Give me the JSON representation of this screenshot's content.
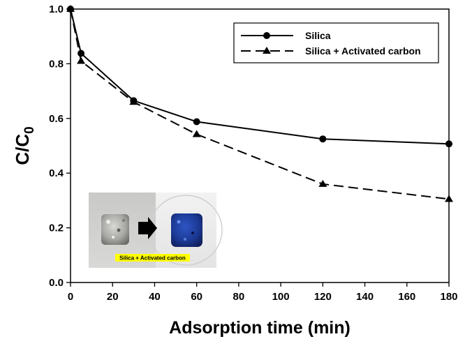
{
  "chart_data": {
    "type": "line",
    "xlabel": "Adsorption time (min)",
    "ylabel_main": "C/C",
    "ylabel_sub": "0",
    "xlim": [
      0,
      180
    ],
    "ylim": [
      0.0,
      1.0
    ],
    "x_ticks": [
      0,
      20,
      40,
      60,
      80,
      100,
      120,
      140,
      160,
      180
    ],
    "y_ticks": [
      "0.0",
      "0.2",
      "0.4",
      "0.6",
      "0.8",
      "1.0"
    ],
    "grid": false,
    "legend_position": "top-right",
    "series": [
      {
        "name": "Silica",
        "marker": "circle",
        "line_style": "solid",
        "color": "#000000",
        "x": [
          0,
          5,
          30,
          60,
          120,
          180
        ],
        "y": [
          1.0,
          0.838,
          0.665,
          0.588,
          0.525,
          0.507
        ]
      },
      {
        "name": "Silica + Activated carbon",
        "marker": "triangle",
        "line_style": "dashed",
        "color": "#000000",
        "x": [
          0,
          5,
          30,
          60,
          120,
          180
        ],
        "y": [
          1.0,
          0.81,
          0.66,
          0.542,
          0.36,
          0.305
        ]
      }
    ],
    "inset": {
      "caption": "Silica + Activated carbon",
      "caption_highlight": "#ffff00",
      "before_color": "#9a9a98",
      "after_color": "#1b3a8f"
    }
  }
}
